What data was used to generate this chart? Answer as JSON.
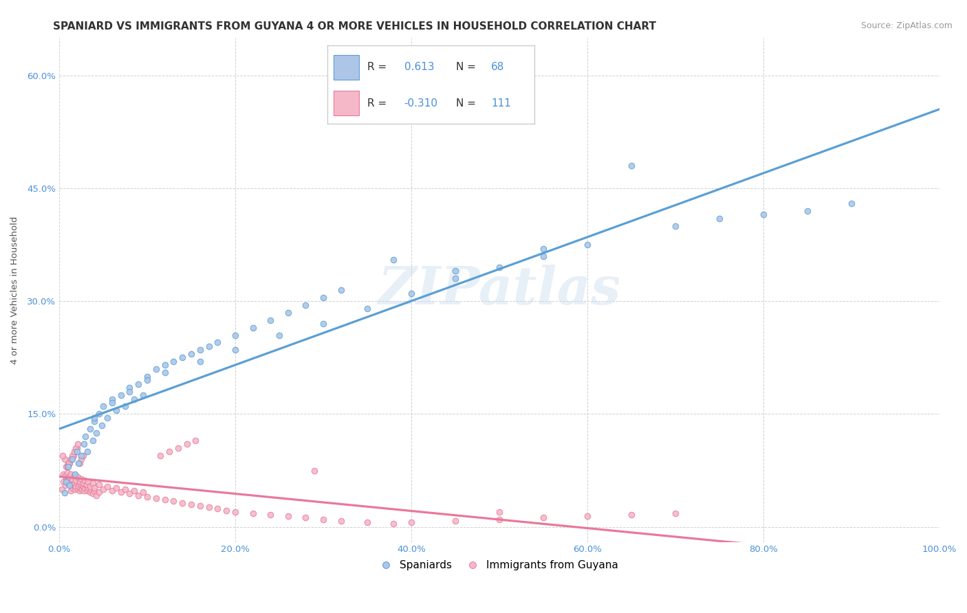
{
  "title": "SPANIARD VS IMMIGRANTS FROM GUYANA 4 OR MORE VEHICLES IN HOUSEHOLD CORRELATION CHART",
  "source": "Source: ZipAtlas.com",
  "ylabel": "4 or more Vehicles in Household",
  "xlim": [
    0.0,
    1.0
  ],
  "ylim": [
    -0.02,
    0.65
  ],
  "xticks": [
    0.0,
    0.2,
    0.4,
    0.6,
    0.8,
    1.0
  ],
  "xticklabels": [
    "0.0%",
    "20.0%",
    "40.0%",
    "60.0%",
    "80.0%",
    "100.0%"
  ],
  "yticks": [
    0.0,
    0.15,
    0.3,
    0.45,
    0.6
  ],
  "yticklabels": [
    "0.0%",
    "15.0%",
    "30.0%",
    "45.0%",
    "60.0%"
  ],
  "watermark": "ZIPatlas",
  "legend_blue_r": "0.613",
  "legend_blue_n": "68",
  "legend_pink_r": "-0.310",
  "legend_pink_n": "111",
  "blue_face_color": "#adc6e8",
  "blue_edge_color": "#5a9fd4",
  "pink_face_color": "#f5b8c8",
  "pink_edge_color": "#e8799a",
  "blue_line_color": "#5a9fd4",
  "pink_line_color": "#e8799a",
  "legend_label_spaniards": "Spaniards",
  "legend_label_guyana": "Immigrants from Guyana",
  "background_color": "#ffffff",
  "grid_color": "#d0d0d0",
  "title_color": "#333333",
  "source_color": "#999999",
  "tick_color": "#4a90d9",
  "ylabel_color": "#555555",
  "title_fontsize": 11,
  "tick_fontsize": 9.5,
  "source_fontsize": 9,
  "ylabel_fontsize": 9.5,
  "legend_r_color": "#4a90d9",
  "legend_text_color": "#333333",
  "spaniards_x": [
    0.006,
    0.008,
    0.01,
    0.012,
    0.015,
    0.018,
    0.02,
    0.022,
    0.025,
    0.028,
    0.03,
    0.032,
    0.035,
    0.038,
    0.04,
    0.042,
    0.045,
    0.048,
    0.05,
    0.055,
    0.06,
    0.065,
    0.07,
    0.075,
    0.08,
    0.085,
    0.09,
    0.095,
    0.1,
    0.11,
    0.12,
    0.13,
    0.14,
    0.15,
    0.16,
    0.17,
    0.18,
    0.2,
    0.22,
    0.24,
    0.26,
    0.28,
    0.3,
    0.32,
    0.04,
    0.06,
    0.08,
    0.1,
    0.12,
    0.16,
    0.2,
    0.25,
    0.3,
    0.35,
    0.4,
    0.45,
    0.5,
    0.55,
    0.6,
    0.7,
    0.75,
    0.8,
    0.85,
    0.9,
    0.45,
    0.38,
    0.55,
    0.65
  ],
  "spaniards_y": [
    0.045,
    0.06,
    0.08,
    0.055,
    0.09,
    0.07,
    0.1,
    0.085,
    0.095,
    0.11,
    0.12,
    0.1,
    0.13,
    0.115,
    0.14,
    0.125,
    0.15,
    0.135,
    0.16,
    0.145,
    0.17,
    0.155,
    0.175,
    0.16,
    0.185,
    0.17,
    0.19,
    0.175,
    0.2,
    0.21,
    0.215,
    0.22,
    0.225,
    0.23,
    0.235,
    0.24,
    0.245,
    0.255,
    0.265,
    0.275,
    0.285,
    0.295,
    0.305,
    0.315,
    0.145,
    0.165,
    0.18,
    0.195,
    0.205,
    0.22,
    0.235,
    0.255,
    0.27,
    0.29,
    0.31,
    0.33,
    0.345,
    0.36,
    0.375,
    0.4,
    0.41,
    0.415,
    0.42,
    0.43,
    0.34,
    0.355,
    0.37,
    0.48
  ],
  "guyana_x": [
    0.003,
    0.005,
    0.007,
    0.008,
    0.01,
    0.012,
    0.013,
    0.015,
    0.016,
    0.018,
    0.019,
    0.02,
    0.021,
    0.022,
    0.023,
    0.024,
    0.025,
    0.026,
    0.027,
    0.028,
    0.029,
    0.03,
    0.032,
    0.033,
    0.035,
    0.036,
    0.038,
    0.04,
    0.042,
    0.045,
    0.005,
    0.007,
    0.009,
    0.011,
    0.013,
    0.015,
    0.017,
    0.019,
    0.021,
    0.023,
    0.025,
    0.027,
    0.029,
    0.031,
    0.033,
    0.035,
    0.038,
    0.04,
    0.045,
    0.05,
    0.055,
    0.06,
    0.065,
    0.07,
    0.075,
    0.08,
    0.085,
    0.09,
    0.095,
    0.1,
    0.11,
    0.12,
    0.13,
    0.14,
    0.15,
    0.16,
    0.17,
    0.18,
    0.19,
    0.2,
    0.22,
    0.24,
    0.26,
    0.28,
    0.3,
    0.32,
    0.35,
    0.38,
    0.4,
    0.45,
    0.5,
    0.55,
    0.6,
    0.65,
    0.7,
    0.115,
    0.125,
    0.135,
    0.145,
    0.155,
    0.29,
    0.012,
    0.014,
    0.016,
    0.018,
    0.02,
    0.008,
    0.01,
    0.006,
    0.004,
    0.009,
    0.011,
    0.013,
    0.015,
    0.017,
    0.019,
    0.021,
    0.023,
    0.025,
    0.027,
    0.5
  ],
  "guyana_y": [
    0.05,
    0.06,
    0.055,
    0.065,
    0.058,
    0.062,
    0.048,
    0.052,
    0.056,
    0.05,
    0.054,
    0.058,
    0.05,
    0.054,
    0.048,
    0.052,
    0.056,
    0.05,
    0.054,
    0.048,
    0.052,
    0.056,
    0.048,
    0.052,
    0.046,
    0.05,
    0.044,
    0.048,
    0.042,
    0.046,
    0.07,
    0.068,
    0.072,
    0.066,
    0.07,
    0.064,
    0.068,
    0.062,
    0.066,
    0.06,
    0.064,
    0.058,
    0.062,
    0.056,
    0.06,
    0.054,
    0.058,
    0.052,
    0.056,
    0.05,
    0.054,
    0.048,
    0.052,
    0.046,
    0.05,
    0.044,
    0.048,
    0.042,
    0.046,
    0.04,
    0.038,
    0.036,
    0.034,
    0.032,
    0.03,
    0.028,
    0.026,
    0.024,
    0.022,
    0.02,
    0.018,
    0.016,
    0.014,
    0.012,
    0.01,
    0.008,
    0.006,
    0.004,
    0.006,
    0.008,
    0.01,
    0.012,
    0.014,
    0.016,
    0.018,
    0.095,
    0.1,
    0.105,
    0.11,
    0.115,
    0.075,
    0.085,
    0.09,
    0.095,
    0.1,
    0.105,
    0.08,
    0.085,
    0.09,
    0.095,
    0.08,
    0.085,
    0.09,
    0.095,
    0.1,
    0.105,
    0.11,
    0.085,
    0.09,
    0.095,
    0.02
  ]
}
